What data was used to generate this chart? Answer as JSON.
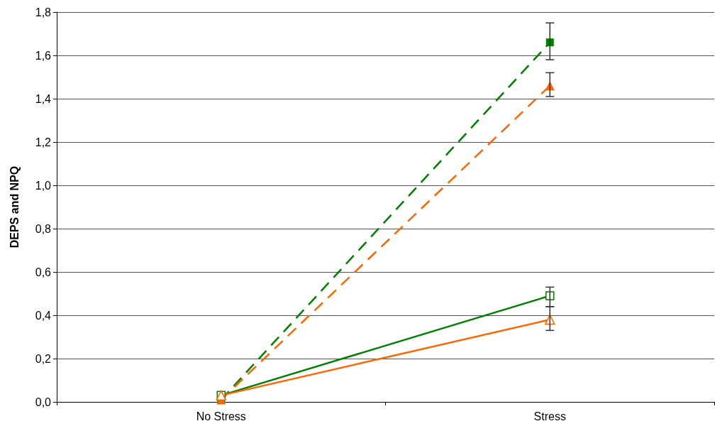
{
  "chart_data": {
    "type": "line",
    "ylabel": "DEPS and NPQ",
    "categories": [
      "No Stress",
      "Stress"
    ],
    "series": [
      {
        "color": "#008000",
        "values": [
          0.01,
          1.66
        ],
        "errors": [
          null,
          [
            1.58,
            1.75
          ]
        ],
        "marker": "square",
        "line_style": "dashed"
      },
      {
        "color": "#ff6600",
        "values": [
          0.01,
          1.46
        ],
        "errors": [
          null,
          [
            1.41,
            1.52
          ]
        ],
        "marker": "triangle",
        "line_style": "dashed"
      },
      {
        "color": "#008000",
        "values": [
          0.03,
          0.49
        ],
        "errors": [
          null,
          [
            0.44,
            0.53
          ]
        ],
        "marker": "square",
        "line_style": "solid"
      },
      {
        "color": "#ff6600",
        "values": [
          0.03,
          0.38
        ],
        "errors": [
          null,
          [
            0.33,
            0.44
          ]
        ],
        "marker": "triangle",
        "line_style": "solid"
      }
    ],
    "ylim": [
      0,
      1.8
    ],
    "yticks": [
      {
        "value": 0,
        "label": "0,0"
      },
      {
        "value": 0.2,
        "label": "0,2"
      },
      {
        "value": 0.4,
        "label": "0,4"
      },
      {
        "value": 0.6,
        "label": "0,6"
      },
      {
        "value": 0.8,
        "label": "0,8"
      },
      {
        "value": 1.0,
        "label": "1,0"
      },
      {
        "value": 1.2,
        "label": "1,2"
      },
      {
        "value": 1.4,
        "label": "1,4"
      },
      {
        "value": 1.6,
        "label": "1,6"
      },
      {
        "value": 1.8,
        "label": "1,8"
      }
    ],
    "grid": "y",
    "legend": false
  }
}
